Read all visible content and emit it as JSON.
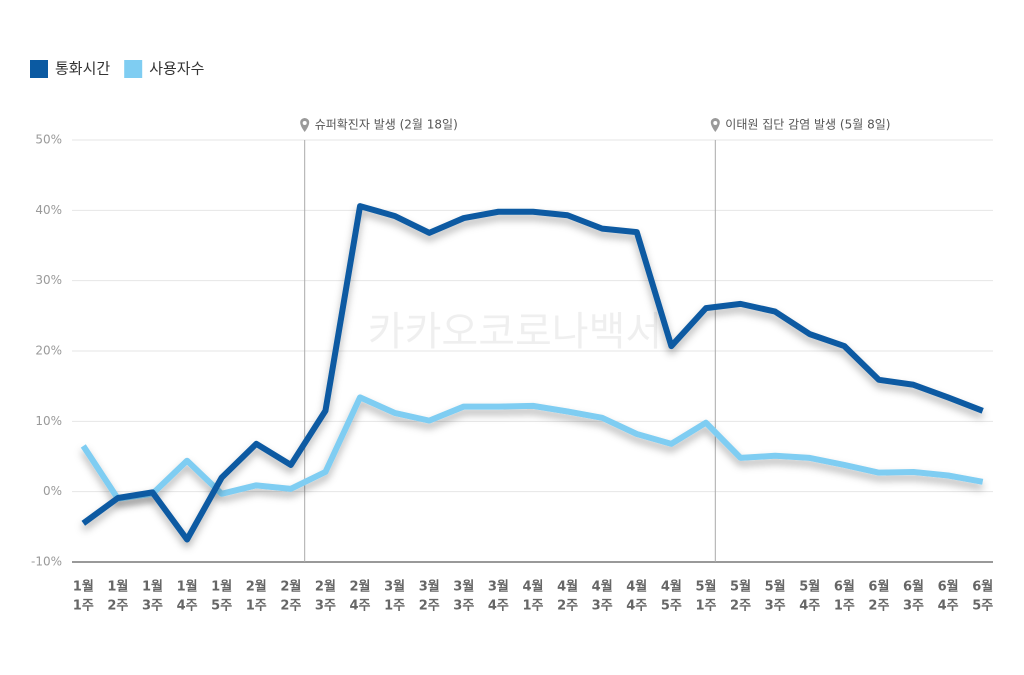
{
  "chart_data": {
    "type": "line",
    "watermark": "카카오코로나백서",
    "categories": [
      [
        "1월",
        "1주"
      ],
      [
        "1월",
        "2주"
      ],
      [
        "1월",
        "3주"
      ],
      [
        "1월",
        "4주"
      ],
      [
        "1월",
        "5주"
      ],
      [
        "2월",
        "1주"
      ],
      [
        "2월",
        "2주"
      ],
      [
        "2월",
        "3주"
      ],
      [
        "2월",
        "4주"
      ],
      [
        "3월",
        "1주"
      ],
      [
        "3월",
        "2주"
      ],
      [
        "3월",
        "3주"
      ],
      [
        "3월",
        "4주"
      ],
      [
        "4월",
        "1주"
      ],
      [
        "4월",
        "2주"
      ],
      [
        "4월",
        "3주"
      ],
      [
        "4월",
        "4주"
      ],
      [
        "4월",
        "5주"
      ],
      [
        "5월",
        "1주"
      ],
      [
        "5월",
        "2주"
      ],
      [
        "5월",
        "3주"
      ],
      [
        "5월",
        "4주"
      ],
      [
        "6월",
        "1주"
      ],
      [
        "6월",
        "2주"
      ],
      [
        "6월",
        "3주"
      ],
      [
        "6월",
        "4주"
      ],
      [
        "6월",
        "5주"
      ]
    ],
    "series": [
      {
        "name": "통화시간",
        "color": "#0b5aa2",
        "values": [
          -4.5,
          -0.9,
          -0.1,
          -6.8,
          2.0,
          6.8,
          3.8,
          11.5,
          40.6,
          39.2,
          36.8,
          38.9,
          39.8,
          39.8,
          39.3,
          37.4,
          36.9,
          20.7,
          26.1,
          26.7,
          25.6,
          22.4,
          20.7,
          15.9,
          15.2,
          13.4,
          11.5
        ]
      },
      {
        "name": "사용자수",
        "color": "#7fcdf2",
        "values": [
          6.5,
          -1.0,
          -0.3,
          4.4,
          -0.3,
          0.9,
          0.4,
          2.8,
          13.4,
          11.2,
          10.1,
          12.1,
          12.1,
          12.2,
          11.4,
          10.5,
          8.2,
          6.8,
          9.8,
          4.8,
          5.1,
          4.8,
          3.8,
          2.7,
          2.8,
          2.3,
          1.4
        ]
      }
    ],
    "annotations": [
      {
        "text": "슈퍼확진자 발생 (2월 18일)",
        "x": 6.4
      },
      {
        "text": "이태원 집단 감염 발생 (5월 8일)",
        "x": 18.27
      }
    ],
    "ylim": [
      -10,
      50
    ],
    "yticks": [
      {
        "value": -10,
        "label": "-10%"
      },
      {
        "value": 0,
        "label": "0%"
      },
      {
        "value": 10,
        "label": "10%"
      },
      {
        "value": 20,
        "label": "20%"
      },
      {
        "value": 30,
        "label": "30%"
      },
      {
        "value": 40,
        "label": "40%"
      },
      {
        "value": 50,
        "label": "50%"
      }
    ],
    "grid": true
  }
}
